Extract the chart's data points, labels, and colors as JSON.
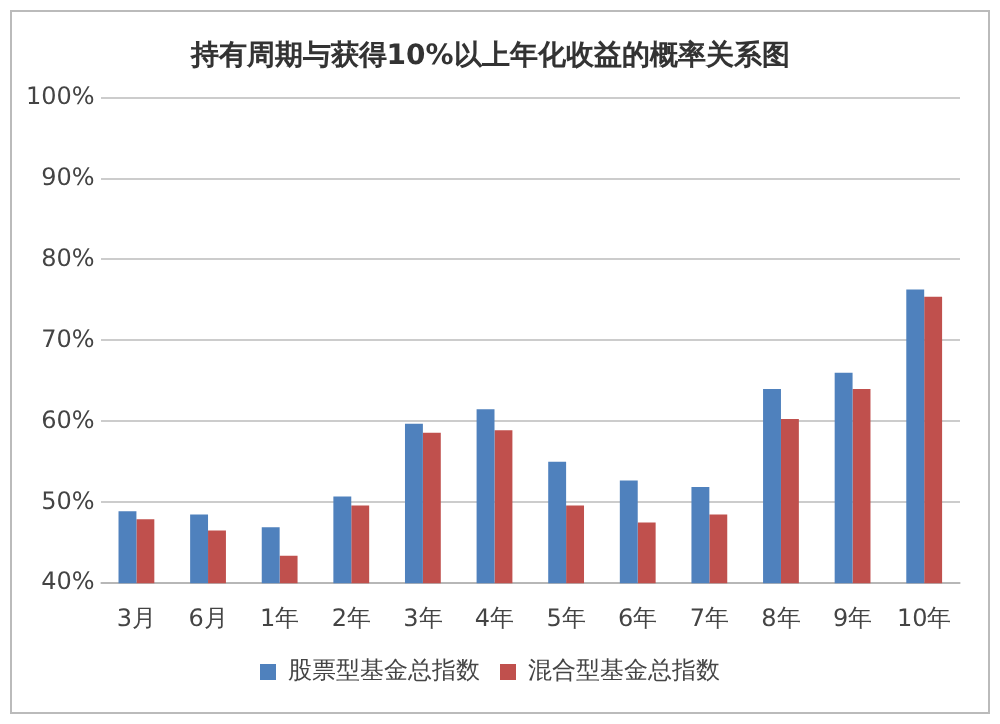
{
  "chart_data": {
    "type": "bar",
    "title": "持有周期与获得10%以上年化收益的概率关系图",
    "categories": [
      "3月",
      "6月",
      "1年",
      "2年",
      "3年",
      "4年",
      "5年",
      "6年",
      "7年",
      "8年",
      "9年",
      "10年"
    ],
    "series": [
      {
        "name": "股票型基金总指数",
        "color": "#4f81bd",
        "values": [
          48.9,
          48.5,
          46.9,
          50.7,
          59.7,
          61.5,
          55.0,
          52.7,
          51.9,
          64,
          66,
          76.3
        ]
      },
      {
        "name": "混合型基金总指数",
        "color": "#c0504d",
        "values": [
          47.9,
          46.5,
          43.4,
          49.6,
          58.6,
          58.9,
          49.6,
          47.5,
          48.5,
          60.3,
          64,
          75.4
        ]
      }
    ],
    "ylim": [
      40,
      100
    ],
    "yticks": [
      {
        "value": 40,
        "label": "40%"
      },
      {
        "value": 50,
        "label": "50%"
      },
      {
        "value": 60,
        "label": "60%"
      },
      {
        "value": 70,
        "label": "70%"
      },
      {
        "value": 80,
        "label": "80%"
      },
      {
        "value": 90,
        "label": "90%"
      },
      {
        "value": 100,
        "label": "100%"
      }
    ],
    "grid": "y",
    "legend": "bottom"
  }
}
